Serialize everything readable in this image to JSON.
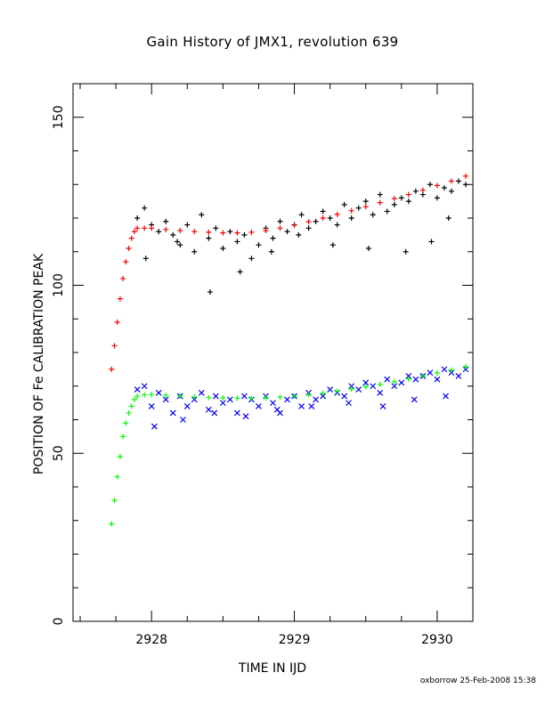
{
  "title": "Gain History of JMX1, revolution 639",
  "footer": "oxborrow 25-Feb-2008 15:38",
  "chart_data": {
    "type": "scatter",
    "title": "Gain History of JMX1, revolution 639",
    "xlabel": "TIME IN IJD",
    "ylabel": "POSITION OF Fe CALIBRATION PEAK",
    "xlim": [
      2927.45,
      2930.25
    ],
    "ylim": [
      0,
      160
    ],
    "x_ticks": [
      2928,
      2929,
      2930
    ],
    "x_tick_labels": [
      "2928",
      "2929",
      "2930"
    ],
    "y_ticks": [
      0,
      50,
      100,
      150
    ],
    "y_tick_labels": [
      "0",
      "50",
      "100",
      "150"
    ],
    "grid": false,
    "legend": "none",
    "colors": {
      "upper_points": "#000000",
      "upper_fit": "#ff0000",
      "lower_points": "#0000ff",
      "lower_fit": "#00ff00"
    },
    "series": [
      {
        "marker": "plus",
        "color": "#000000",
        "x": [
          2927.9,
          2927.95,
          2928.0,
          2928.05,
          2928.1,
          2928.15,
          2928.2,
          2928.25,
          2928.3,
          2928.35,
          2928.4,
          2928.45,
          2928.5,
          2928.55,
          2928.6,
          2928.65,
          2928.7,
          2928.75,
          2928.8,
          2928.85,
          2928.9,
          2928.95,
          2929.0,
          2929.05,
          2929.1,
          2929.15,
          2929.2,
          2929.25,
          2929.3,
          2929.35,
          2929.4,
          2929.45,
          2929.5,
          2929.55,
          2929.6,
          2929.65,
          2929.7,
          2929.75,
          2929.8,
          2929.85,
          2929.9,
          2929.95,
          2930.0,
          2930.05,
          2930.1,
          2930.15,
          2930.2,
          2927.96,
          2928.18,
          2928.41,
          2928.62,
          2928.84,
          2929.03,
          2929.27,
          2929.52,
          2929.78,
          2929.96,
          2930.08
        ],
        "y": [
          120,
          123,
          118,
          116,
          119,
          115,
          112,
          118,
          110,
          121,
          114,
          117,
          111,
          116,
          113,
          115,
          108,
          112,
          117,
          114,
          119,
          116,
          118,
          121,
          117,
          119,
          122,
          120,
          118,
          124,
          120,
          123,
          125,
          121,
          127,
          122,
          124,
          126,
          125,
          128,
          127,
          130,
          126,
          129,
          128,
          131,
          130,
          108,
          113,
          98,
          104,
          110,
          115,
          112,
          111,
          110,
          113,
          120
        ]
      },
      {
        "marker": "plus",
        "color": "#ff0000",
        "x": [
          2927.72,
          2927.74,
          2927.76,
          2927.78,
          2927.8,
          2927.82,
          2927.84,
          2927.86,
          2927.88,
          2927.9,
          2927.95,
          2928.0,
          2928.1,
          2928.2,
          2928.3,
          2928.4,
          2928.5,
          2928.6,
          2928.7,
          2928.8,
          2928.9,
          2929.0,
          2929.1,
          2929.2,
          2929.3,
          2929.4,
          2929.5,
          2929.6,
          2929.7,
          2929.8,
          2929.9,
          2930.0,
          2930.1,
          2930.2
        ],
        "y": [
          75,
          82,
          89,
          96,
          102,
          107,
          111,
          114,
          116,
          117,
          117,
          117,
          116.6,
          116.3,
          116,
          115.8,
          115.6,
          115.6,
          115.8,
          116.3,
          117,
          117.9,
          118.9,
          120,
          121.1,
          122.2,
          123.4,
          124.6,
          125.8,
          127,
          128.3,
          129.7,
          131,
          132.5
        ]
      },
      {
        "marker": "cross",
        "color": "#0000ff",
        "x": [
          2927.9,
          2927.95,
          2928.0,
          2928.05,
          2928.1,
          2928.15,
          2928.2,
          2928.25,
          2928.3,
          2928.35,
          2928.4,
          2928.45,
          2928.5,
          2928.55,
          2928.6,
          2928.65,
          2928.7,
          2928.75,
          2928.8,
          2928.85,
          2928.9,
          2928.95,
          2929.0,
          2929.05,
          2929.1,
          2929.15,
          2929.2,
          2929.25,
          2929.3,
          2929.35,
          2929.4,
          2929.45,
          2929.5,
          2929.55,
          2929.6,
          2929.65,
          2929.7,
          2929.75,
          2929.8,
          2929.85,
          2929.9,
          2929.95,
          2930.0,
          2930.05,
          2930.1,
          2930.15,
          2930.2,
          2928.02,
          2928.22,
          2928.44,
          2928.66,
          2928.88,
          2929.12,
          2929.38,
          2929.62,
          2929.84,
          2930.06
        ],
        "y": [
          69,
          70,
          64,
          68,
          66,
          62,
          67,
          64,
          66,
          68,
          63,
          67,
          65,
          66,
          62,
          67,
          66,
          64,
          67,
          65,
          62,
          66,
          67,
          64,
          68,
          66,
          67,
          69,
          68,
          67,
          70,
          69,
          71,
          70,
          68,
          72,
          70,
          71,
          73,
          72,
          73,
          74,
          72,
          75,
          74,
          73,
          75,
          58,
          60,
          62,
          61,
          63,
          64,
          65,
          64,
          66,
          67
        ]
      },
      {
        "marker": "plus",
        "color": "#00ff00",
        "x": [
          2927.72,
          2927.74,
          2927.76,
          2927.78,
          2927.8,
          2927.82,
          2927.84,
          2927.86,
          2927.88,
          2927.9,
          2927.95,
          2928.0,
          2928.1,
          2928.2,
          2928.3,
          2928.4,
          2928.5,
          2928.6,
          2928.7,
          2928.8,
          2928.9,
          2929.0,
          2929.1,
          2929.2,
          2929.3,
          2929.4,
          2929.5,
          2929.6,
          2929.7,
          2929.8,
          2929.9,
          2930.0,
          2930.1,
          2930.2
        ],
        "y": [
          29,
          36,
          43,
          49,
          55,
          59,
          62,
          64,
          66,
          67,
          67.4,
          67.5,
          67.3,
          67.1,
          66.8,
          66.6,
          66.5,
          66.4,
          66.4,
          66.5,
          66.7,
          67,
          67.4,
          67.9,
          68.5,
          69.1,
          69.8,
          70.5,
          71.3,
          72.1,
          73,
          73.9,
          74.8,
          75.8
        ]
      }
    ]
  }
}
